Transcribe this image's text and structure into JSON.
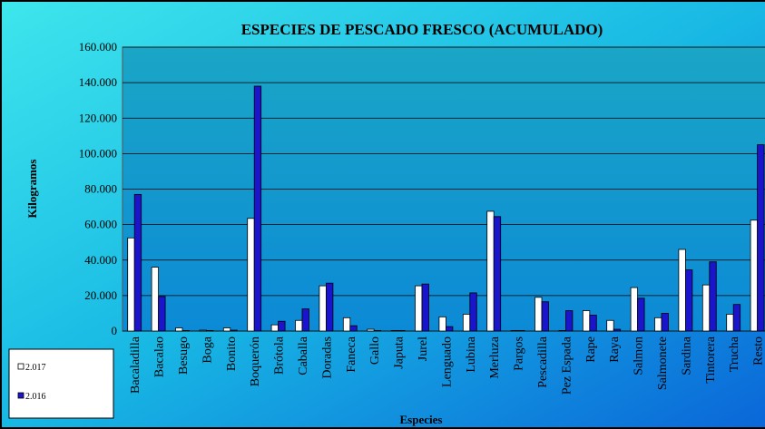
{
  "chart_data": {
    "type": "bar",
    "title": "ESPECIES DE PESCADO FRESCO (ACUMULADO)",
    "y_label": "Kilogramos",
    "x_label": "Especies",
    "categories": [
      "Bacaladilla",
      "Bacalao",
      "Besugo",
      "Boga",
      "Bonito",
      "Boquerón",
      "Brótola",
      "Caballa",
      "Doradas",
      "Faneca",
      "Gallo",
      "Japuta",
      "Jurel",
      "Lenguado",
      "Lubina",
      "Merluza",
      "Pargos",
      "Pescadilla",
      "Pez Espada",
      "Rape",
      "Raya",
      "Salmon",
      "Salmonete",
      "Sardina",
      "Tintorera",
      "Trucha",
      "Resto"
    ],
    "series": [
      {
        "name": "2.017",
        "color": "#ffffff",
        "values": [
          52500,
          36000,
          1800,
          500,
          1800,
          63500,
          3500,
          6000,
          25500,
          7500,
          1000,
          300,
          25500,
          8000,
          9500,
          67500,
          300,
          19000,
          300,
          11500,
          6000,
          24500,
          7500,
          46000,
          26000,
          9500,
          62500
        ]
      },
      {
        "name": "2.016",
        "color": "#1a14cc",
        "values": [
          77000,
          19500,
          300,
          300,
          500,
          138000,
          5500,
          12500,
          27000,
          3000,
          300,
          300,
          26500,
          2500,
          21500,
          64500,
          300,
          16500,
          11500,
          9000,
          1000,
          18500,
          10000,
          34500,
          39000,
          15000,
          105000
        ]
      }
    ],
    "ylim": [
      0,
      160000
    ],
    "yticks": [
      0,
      {
        "value": 20000,
        "label": "20.000"
      },
      {
        "value": 40000,
        "label": "40.000"
      },
      {
        "value": 60000,
        "label": "60.000"
      },
      {
        "value": 80000,
        "label": "80.000"
      },
      {
        "value": 100000,
        "label": "100.000"
      },
      {
        "value": 120000,
        "label": "120.000"
      },
      {
        "value": 140000,
        "label": "140.000"
      },
      {
        "value": 160000,
        "label": "160.000"
      }
    ],
    "grid": true,
    "legend": "bottom-left"
  }
}
